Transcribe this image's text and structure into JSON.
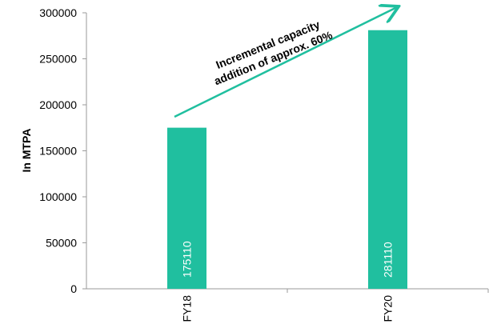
{
  "chart_data": {
    "type": "bar",
    "categories": [
      "FY18",
      "FY20"
    ],
    "values": [
      175110,
      281110
    ],
    "data_labels": [
      "175110",
      "281110"
    ],
    "ylabel": "In MTPA",
    "xlabel": "",
    "ylim": [
      0,
      300000
    ],
    "yticks": [
      "0",
      "50000",
      "100000",
      "150000",
      "200000",
      "250000",
      "300000"
    ],
    "bar_color": "#20BF9F",
    "grid": false,
    "annotation": {
      "lines": [
        "Incremental capacity",
        "addition of approx. 60%"
      ],
      "arrow_color": "#20BF9F"
    }
  }
}
